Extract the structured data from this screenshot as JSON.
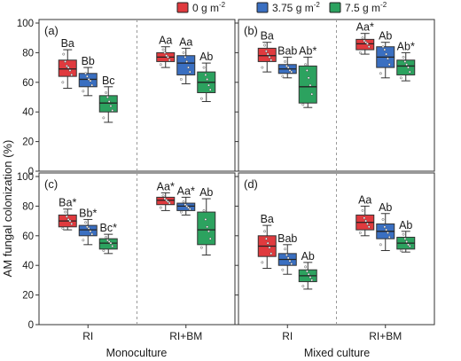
{
  "legend": [
    {
      "label": "0 g m",
      "sup": "-2",
      "color": "#e03a3e"
    },
    {
      "label": "3.75 g m",
      "sup": "-2",
      "color": "#3a6fc1"
    },
    {
      "label": "7.5 g m",
      "sup": "-2",
      "color": "#2ca25f"
    }
  ],
  "ylabel": "AM fungal colonization (%)",
  "xticklabels": [
    "RI",
    "RI+BM"
  ],
  "group_labels": [
    "Monoculture",
    "Mixed culture"
  ],
  "chart_data": {
    "type": "box",
    "ylim": [
      0,
      100
    ],
    "yticks": [
      0,
      20,
      40,
      60,
      80,
      100
    ],
    "categories": [
      "RI",
      "RI+BM"
    ],
    "series_names": [
      "0 g m-2",
      "3.75 g m-2",
      "7.5 g m-2"
    ],
    "panels": [
      {
        "label": "(a)",
        "groups": [
          {
            "category": "RI",
            "boxes": [
              {
                "series": "0 g m-2",
                "min": 56,
                "q1": 64,
                "median": 69,
                "q3": 75,
                "max": 82,
                "letter": "Ba",
                "points": [
                  60,
                  65,
                  68,
                  70,
                  71,
                  74,
                  79
                ]
              },
              {
                "series": "3.75 g m-2",
                "min": 51,
                "q1": 57,
                "median": 62,
                "q3": 66,
                "max": 70,
                "letter": "Bb",
                "points": [
                  54,
                  58,
                  61,
                  62,
                  64,
                  66
                ]
              },
              {
                "series": "7.5 g m-2",
                "min": 33,
                "q1": 40,
                "median": 46,
                "q3": 51,
                "max": 57,
                "letter": "Bc",
                "points": [
                  36,
                  41,
                  44,
                  47,
                  50,
                  53
                ]
              }
            ]
          },
          {
            "category": "RI+BM",
            "boxes": [
              {
                "series": "0 g m-2",
                "min": 70,
                "q1": 74,
                "median": 77,
                "q3": 80,
                "max": 84,
                "letter": "Aa",
                "points": [
                  72,
                  75,
                  77,
                  78,
                  80,
                  82
                ]
              },
              {
                "series": "3.75 g m-2",
                "min": 59,
                "q1": 65,
                "median": 73,
                "q3": 78,
                "max": 83,
                "letter": "Aa",
                "points": [
                  62,
                  67,
                  70,
                  74,
                  77,
                  80
                ]
              },
              {
                "series": "7.5 g m-2",
                "min": 47,
                "q1": 53,
                "median": 60,
                "q3": 67,
                "max": 73,
                "letter": "Ab",
                "points": [
                  49,
                  55,
                  58,
                  62,
                  65,
                  70
                ]
              }
            ]
          }
        ]
      },
      {
        "label": "(b)",
        "groups": [
          {
            "category": "RI",
            "boxes": [
              {
                "series": "0 g m-2",
                "min": 67,
                "q1": 74,
                "median": 78,
                "q3": 83,
                "max": 87,
                "letter": "Ba",
                "points": [
                  70,
                  75,
                  77,
                  79,
                  81,
                  85
                ]
              },
              {
                "series": "3.75 g m-2",
                "min": 63,
                "q1": 66,
                "median": 69,
                "q3": 72,
                "max": 77,
                "letter": "Bab",
                "points": [
                  64,
                  67,
                  68,
                  70,
                  71,
                  74
                ]
              },
              {
                "series": "7.5 g m-2",
                "min": 43,
                "q1": 46,
                "median": 57,
                "q3": 71,
                "max": 77,
                "letter": "Ab*",
                "points": [
                  45,
                  52,
                  58,
                  63,
                  68,
                  72
                ]
              }
            ]
          },
          {
            "category": "RI+BM",
            "boxes": [
              {
                "series": "0 g m-2",
                "min": 79,
                "q1": 82,
                "median": 86,
                "q3": 89,
                "max": 93,
                "letter": "Aa*",
                "points": [
                  80,
                  84,
                  86,
                  87,
                  88,
                  90
                ]
              },
              {
                "series": "3.75 g m-2",
                "min": 63,
                "q1": 70,
                "median": 77,
                "q3": 84,
                "max": 87,
                "letter": "Ab",
                "points": [
                  66,
                  72,
                  76,
                  79,
                  82,
                  84
                ]
              },
              {
                "series": "7.5 g m-2",
                "min": 61,
                "q1": 65,
                "median": 71,
                "q3": 75,
                "max": 80,
                "letter": "Ab*",
                "points": [
                  63,
                  67,
                  70,
                  72,
                  74,
                  77
                ]
              }
            ]
          }
        ]
      },
      {
        "label": "(c)",
        "groups": [
          {
            "category": "RI",
            "boxes": [
              {
                "series": "0 g m-2",
                "min": 64,
                "q1": 66,
                "median": 70,
                "q3": 74,
                "max": 78,
                "letter": "Ba*",
                "points": [
                  65,
                  68,
                  70,
                  71,
                  73,
                  76
                ]
              },
              {
                "series": "3.75 g m-2",
                "min": 54,
                "q1": 60,
                "median": 64,
                "q3": 67,
                "max": 71,
                "letter": "Bb*",
                "points": [
                  57,
                  61,
                  63,
                  65,
                  66,
                  69
                ]
              },
              {
                "series": "7.5 g m-2",
                "min": 48,
                "q1": 51,
                "median": 55,
                "q3": 58,
                "max": 61,
                "letter": "Bc*",
                "points": [
                  50,
                  53,
                  55,
                  56,
                  57,
                  59
                ]
              }
            ]
          },
          {
            "category": "RI+BM",
            "boxes": [
              {
                "series": "0 g m-2",
                "min": 77,
                "q1": 81,
                "median": 84,
                "q3": 86,
                "max": 89,
                "letter": "Aa*",
                "points": [
                  79,
                  82,
                  83,
                  84,
                  85,
                  87
                ]
              },
              {
                "series": "3.75 g m-2",
                "min": 74,
                "q1": 77,
                "median": 80,
                "q3": 82,
                "max": 86,
                "letter": "Aa*",
                "points": [
                  76,
                  78,
                  79,
                  80,
                  81,
                  83
                ]
              },
              {
                "series": "7.5 g m-2",
                "min": 47,
                "q1": 54,
                "median": 64,
                "q3": 76,
                "max": 85,
                "letter": "Ab",
                "points": [
                  52,
                  58,
                  63,
                  66,
                  71,
                  77
                ]
              }
            ]
          }
        ]
      },
      {
        "label": "(d)",
        "groups": [
          {
            "category": "RI",
            "boxes": [
              {
                "series": "0 g m-2",
                "min": 38,
                "q1": 46,
                "median": 53,
                "q3": 60,
                "max": 67,
                "letter": "Ba",
                "points": [
                  42,
                  48,
                  52,
                  55,
                  58,
                  63
                ]
              },
              {
                "series": "3.75 g m-2",
                "min": 34,
                "q1": 40,
                "median": 44,
                "q3": 48,
                "max": 54,
                "letter": "Bab",
                "points": [
                  37,
                  41,
                  43,
                  45,
                  47,
                  51
                ]
              },
              {
                "series": "7.5 g m-2",
                "min": 24,
                "q1": 29,
                "median": 33,
                "q3": 37,
                "max": 42,
                "letter": "Ab",
                "points": [
                  26,
                  30,
                  32,
                  34,
                  36,
                  39
                ]
              }
            ]
          },
          {
            "category": "RI+BM",
            "boxes": [
              {
                "series": "0 g m-2",
                "min": 60,
                "q1": 64,
                "median": 69,
                "q3": 74,
                "max": 80,
                "letter": "Aa",
                "points": [
                  62,
                  66,
                  68,
                  70,
                  72,
                  77
                ]
              },
              {
                "series": "3.75 g m-2",
                "min": 50,
                "q1": 58,
                "median": 63,
                "q3": 68,
                "max": 75,
                "letter": "Ab",
                "points": [
                  54,
                  59,
                  62,
                  64,
                  66,
                  71
                ]
              },
              {
                "series": "7.5 g m-2",
                "min": 49,
                "q1": 51,
                "median": 55,
                "q3": 59,
                "max": 63,
                "letter": "Ab",
                "points": [
                  50,
                  53,
                  54,
                  56,
                  58,
                  61
                ]
              }
            ]
          }
        ]
      }
    ]
  }
}
